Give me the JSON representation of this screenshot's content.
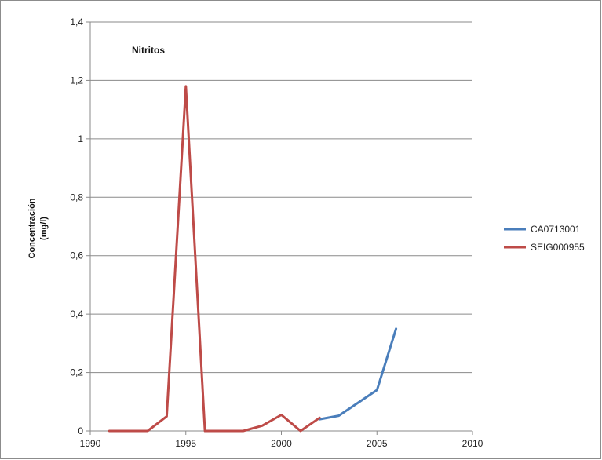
{
  "chart_data": {
    "type": "line",
    "title": "Nitritos",
    "ylabel_lines": [
      "Concentración",
      "(mg/l)"
    ],
    "xlabel": "",
    "xlim": [
      1990,
      2010
    ],
    "ylim": [
      0,
      1.4
    ],
    "x_ticks": [
      1990,
      1995,
      2000,
      2005,
      2010
    ],
    "x_tick_labels": [
      "1990",
      "1995",
      "2000",
      "2005",
      "2010"
    ],
    "y_ticks": [
      0,
      0.2,
      0.4,
      0.6,
      0.8,
      1,
      1.2,
      1.4
    ],
    "y_tick_labels": [
      "0",
      "0,2",
      "0,4",
      "0,6",
      "0,8",
      "1",
      "1,2",
      "1,4"
    ],
    "grid": true,
    "legend_position": "right",
    "series": [
      {
        "name": "CA0713001",
        "color": "#4a7ebb",
        "x": [
          2002,
          2003,
          2005,
          2006
        ],
        "y": [
          0.04,
          0.052,
          0.14,
          0.35
        ]
      },
      {
        "name": "SEIG000955",
        "color": "#be4b48",
        "x": [
          1991,
          1993,
          1994,
          1995,
          1996,
          1998,
          1999,
          2000,
          2001,
          2002
        ],
        "y": [
          0,
          0,
          0.05,
          1.18,
          0,
          0,
          0.018,
          0.055,
          0,
          0.045
        ]
      }
    ]
  }
}
